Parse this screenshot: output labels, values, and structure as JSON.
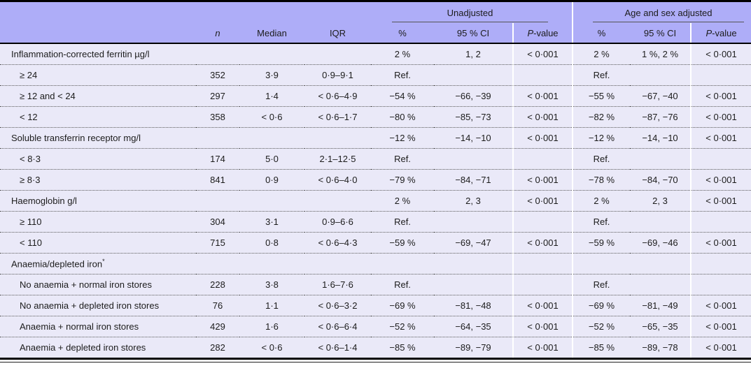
{
  "table": {
    "groups": {
      "unadjusted": "Unadjusted",
      "adjusted": "Age and sex adjusted"
    },
    "columns": {
      "n": "n",
      "median": "Median",
      "iqr": "IQR",
      "pct": "%",
      "ci": "95 % CI",
      "p_italic": "P",
      "p_rest": "-value"
    },
    "rows": [
      {
        "label": "Inflammation-corrected ferritin µg/l",
        "indent": false,
        "n": "",
        "median": "",
        "iqr": "",
        "u_pct": "2 %",
        "u_ci": "1, 2",
        "u_p": "< 0·001",
        "a_pct": "2 %",
        "a_ci": "1 %, 2 %",
        "a_p": "< 0·001"
      },
      {
        "label": "≥ 24",
        "indent": true,
        "n": "352",
        "median": "3·9",
        "iqr": "0·9–9·1",
        "u_pct": "Ref.",
        "u_ci": "",
        "u_p": "",
        "a_pct": "Ref.",
        "a_ci": "",
        "a_p": ""
      },
      {
        "label": "≥ 12 and < 24",
        "indent": true,
        "n": "297",
        "median": "1·4",
        "iqr": "< 0·6–4·9",
        "u_pct": "−54 %",
        "u_ci": "−66, −39",
        "u_p": "< 0·001",
        "a_pct": "−55 %",
        "a_ci": "−67, −40",
        "a_p": "< 0·001"
      },
      {
        "label": "< 12",
        "indent": true,
        "n": "358",
        "median": "< 0·6",
        "iqr": "< 0·6–1·7",
        "u_pct": "−80 %",
        "u_ci": "−85, −73",
        "u_p": "< 0·001",
        "a_pct": "−82 %",
        "a_ci": "−87, −76",
        "a_p": "< 0·001"
      },
      {
        "label": "Soluble transferrin receptor mg/l",
        "indent": false,
        "n": "",
        "median": "",
        "iqr": "",
        "u_pct": "−12 %",
        "u_ci": "−14, −10",
        "u_p": "< 0·001",
        "a_pct": "−12 %",
        "a_ci": "−14, −10",
        "a_p": "< 0·001"
      },
      {
        "label": "< 8·3",
        "indent": true,
        "n": "174",
        "median": "5·0",
        "iqr": "2·1–12·5",
        "u_pct": "Ref.",
        "u_ci": "",
        "u_p": "",
        "a_pct": "Ref.",
        "a_ci": "",
        "a_p": ""
      },
      {
        "label": "≥ 8·3",
        "indent": true,
        "n": "841",
        "median": "0·9",
        "iqr": "< 0·6–4·0",
        "u_pct": "−79 %",
        "u_ci": "−84, −71",
        "u_p": "< 0·001",
        "a_pct": "−78 %",
        "a_ci": "−84, −70",
        "a_p": "< 0·001"
      },
      {
        "label": "Haemoglobin g/l",
        "indent": false,
        "n": "",
        "median": "",
        "iqr": "",
        "u_pct": "2 %",
        "u_ci": "2, 3",
        "u_p": "< 0·001",
        "a_pct": "2 %",
        "a_ci": "2, 3",
        "a_p": "< 0·001"
      },
      {
        "label": "≥ 110",
        "indent": true,
        "n": "304",
        "median": "3·1",
        "iqr": "0·9–6·6",
        "u_pct": "Ref.",
        "u_ci": "",
        "u_p": "",
        "a_pct": "Ref.",
        "a_ci": "",
        "a_p": ""
      },
      {
        "label": "< 110",
        "indent": true,
        "n": "715",
        "median": "0·8",
        "iqr": "< 0·6–4·3",
        "u_pct": "−59 %",
        "u_ci": "−69, −47",
        "u_p": "< 0·001",
        "a_pct": "−59 %",
        "a_ci": "−69, −46",
        "a_p": "< 0·001"
      },
      {
        "label": "Anaemia/depleted iron",
        "sup": "*",
        "indent": false,
        "n": "",
        "median": "",
        "iqr": "",
        "u_pct": "",
        "u_ci": "",
        "u_p": "",
        "a_pct": "",
        "a_ci": "",
        "a_p": ""
      },
      {
        "label": "No anaemia + normal iron stores",
        "indent": true,
        "n": "228",
        "median": "3·8",
        "iqr": "1·6–7·6",
        "u_pct": "Ref.",
        "u_ci": "",
        "u_p": "",
        "a_pct": "Ref.",
        "a_ci": "",
        "a_p": ""
      },
      {
        "label": "No anaemia + depleted iron stores",
        "indent": true,
        "n": "76",
        "median": "1·1",
        "iqr": "< 0·6–3·2",
        "u_pct": "−69 %",
        "u_ci": "−81, −48",
        "u_p": "< 0·001",
        "a_pct": "−69 %",
        "a_ci": "−81, −49",
        "a_p": "< 0·001"
      },
      {
        "label": "Anaemia + normal iron stores",
        "indent": true,
        "n": "429",
        "median": "1·6",
        "iqr": "< 0·6–6·4",
        "u_pct": "−52 %",
        "u_ci": "−64, −35",
        "u_p": "< 0·001",
        "a_pct": "−52 %",
        "a_ci": "−65, −35",
        "a_p": "< 0·001"
      },
      {
        "label": "Anaemia + depleted iron stores",
        "indent": true,
        "n": "282",
        "median": "< 0·6",
        "iqr": "< 0·6–1·4",
        "u_pct": "−85 %",
        "u_ci": "−89, −79",
        "u_p": "< 0·001",
        "a_pct": "−85 %",
        "a_ci": "−89, −78",
        "a_p": "< 0·001"
      }
    ]
  },
  "colors": {
    "header_bg": "#aeadf8",
    "body_bg": "#eae9f8",
    "rule": "#000000"
  }
}
